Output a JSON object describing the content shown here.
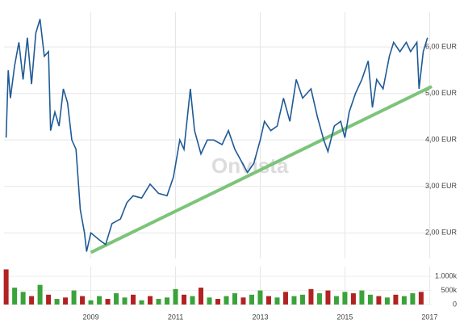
{
  "chart_data": [
    {
      "type": "line",
      "color": "#1f5a96",
      "watermark": "Onvista",
      "x": [
        2007.0,
        2007.05,
        2007.1,
        2007.2,
        2007.3,
        2007.4,
        2007.5,
        2007.6,
        2007.7,
        2007.8,
        2007.9,
        2008.0,
        2008.05,
        2008.15,
        2008.25,
        2008.35,
        2008.45,
        2008.55,
        2008.65,
        2008.75,
        2008.85,
        2008.9,
        2009.0,
        2009.2,
        2009.35,
        2009.5,
        2009.7,
        2009.85,
        2010.0,
        2010.2,
        2010.4,
        2010.6,
        2010.8,
        2010.95,
        2011.1,
        2011.2,
        2011.35,
        2011.45,
        2011.6,
        2011.75,
        2011.9,
        2012.1,
        2012.25,
        2012.4,
        2012.55,
        2012.7,
        2012.85,
        2013.0,
        2013.1,
        2013.25,
        2013.4,
        2013.55,
        2013.7,
        2013.85,
        2014.0,
        2014.2,
        2014.35,
        2014.5,
        2014.6,
        2014.75,
        2014.9,
        2015.0,
        2015.1,
        2015.25,
        2015.4,
        2015.55,
        2015.65,
        2015.75,
        2015.9,
        2016.05,
        2016.15,
        2016.3,
        2016.45,
        2016.55,
        2016.7,
        2016.75,
        2016.85,
        2016.95
      ],
      "values": [
        4.05,
        5.5,
        4.9,
        5.6,
        6.1,
        5.3,
        6.2,
        5.2,
        6.3,
        6.6,
        5.8,
        5.9,
        4.2,
        4.6,
        4.3,
        5.1,
        4.8,
        4.0,
        3.8,
        2.5,
        2.0,
        1.6,
        2.0,
        1.85,
        1.75,
        2.2,
        2.3,
        2.65,
        2.8,
        2.75,
        3.05,
        2.85,
        2.8,
        3.2,
        4.0,
        3.8,
        5.1,
        4.2,
        3.7,
        4.0,
        4.0,
        3.9,
        4.2,
        3.8,
        3.55,
        3.3,
        3.5,
        4.0,
        4.4,
        4.2,
        4.3,
        4.9,
        4.4,
        5.3,
        4.9,
        5.1,
        4.5,
        4.0,
        3.75,
        4.3,
        4.4,
        4.05,
        4.6,
        5.0,
        5.3,
        5.7,
        4.7,
        5.3,
        5.1,
        5.8,
        6.1,
        5.9,
        6.1,
        5.9,
        6.1,
        5.1,
        5.9,
        6.2
      ],
      "trendline": {
        "x": [
          2009.0,
          2017.05
        ],
        "values": [
          1.58,
          5.15
        ],
        "color": "#7cc47a"
      },
      "xlim": [
        2006.95,
        2017.05
      ],
      "xticks": [
        2009,
        2011,
        2013,
        2015,
        2017
      ],
      "ylim": [
        1.45,
        6.75
      ],
      "yticks": [
        {
          "value": 2,
          "label": "2,00 EUR"
        },
        {
          "value": 3,
          "label": "3,00 EUR"
        },
        {
          "value": 4,
          "label": "4,00 EUR"
        },
        {
          "value": 5,
          "label": "5,00 EUR"
        },
        {
          "value": 6,
          "label": "6,00 EUR"
        }
      ],
      "grid": true
    },
    {
      "type": "bar",
      "x": [
        2007.0,
        2007.2,
        2007.4,
        2007.6,
        2007.8,
        2008.0,
        2008.2,
        2008.4,
        2008.6,
        2008.8,
        2009.0,
        2009.2,
        2009.4,
        2009.6,
        2009.8,
        2010.0,
        2010.2,
        2010.4,
        2010.6,
        2010.8,
        2011.0,
        2011.2,
        2011.4,
        2011.6,
        2011.8,
        2012.0,
        2012.2,
        2012.4,
        2012.6,
        2012.8,
        2013.0,
        2013.2,
        2013.4,
        2013.6,
        2013.8,
        2014.0,
        2014.2,
        2014.4,
        2014.6,
        2014.8,
        2015.0,
        2015.2,
        2015.4,
        2015.6,
        2015.8,
        2016.0,
        2016.2,
        2016.4,
        2016.6,
        2016.8
      ],
      "values": [
        1250000,
        600000,
        450000,
        300000,
        700000,
        350000,
        200000,
        250000,
        500000,
        300000,
        150000,
        300000,
        200000,
        400000,
        250000,
        350000,
        150000,
        300000,
        200000,
        250000,
        550000,
        350000,
        300000,
        600000,
        250000,
        200000,
        300000,
        400000,
        250000,
        350000,
        500000,
        300000,
        250000,
        450000,
        300000,
        350000,
        550000,
        400000,
        500000,
        300000,
        450000,
        400000,
        500000,
        350000,
        300000,
        250000,
        350000,
        300000,
        400000,
        450000
      ],
      "colors": [
        "#b22222",
        "#3aa33a",
        "#3aa33a",
        "#b22222",
        "#3aa33a",
        "#b22222",
        "#3aa33a",
        "#b22222",
        "#3aa33a",
        "#b22222",
        "#3aa33a",
        "#3aa33a",
        "#b22222",
        "#3aa33a",
        "#3aa33a",
        "#b22222",
        "#3aa33a",
        "#b22222",
        "#3aa33a",
        "#3aa33a",
        "#3aa33a",
        "#b22222",
        "#3aa33a",
        "#b22222",
        "#3aa33a",
        "#b22222",
        "#3aa33a",
        "#3aa33a",
        "#b22222",
        "#3aa33a",
        "#3aa33a",
        "#b22222",
        "#3aa33a",
        "#b22222",
        "#3aa33a",
        "#3aa33a",
        "#b22222",
        "#3aa33a",
        "#b22222",
        "#3aa33a",
        "#3aa33a",
        "#b22222",
        "#3aa33a",
        "#3aa33a",
        "#b22222",
        "#3aa33a",
        "#b22222",
        "#3aa33a",
        "#3aa33a",
        "#b22222"
      ],
      "xlim": [
        2006.95,
        2017.05
      ],
      "xticks": [
        2009,
        2011,
        2013,
        2015,
        2017
      ],
      "ylim": [
        0,
        1350000
      ],
      "yticks": [
        0,
        {
          "value": 500000,
          "label": "500k"
        },
        {
          "value": 1000000,
          "label": "1.000k"
        }
      ]
    }
  ]
}
